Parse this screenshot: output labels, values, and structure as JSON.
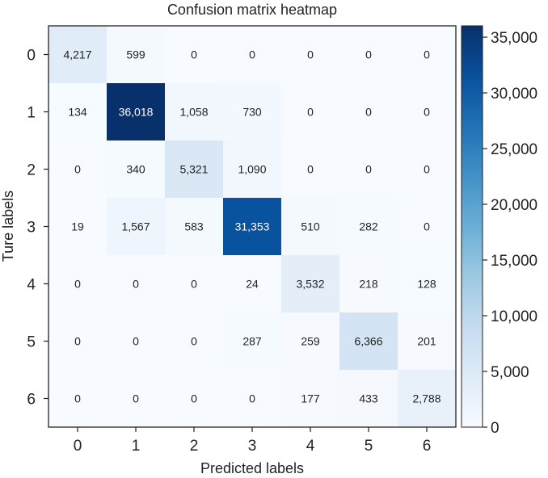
{
  "chart_data": {
    "type": "heatmap",
    "title": "Confusion matrix heatmap",
    "xlabel": "Predicted labels",
    "ylabel": "Ture labels",
    "x_categories": [
      "0",
      "1",
      "2",
      "3",
      "4",
      "5",
      "6"
    ],
    "y_categories": [
      "0",
      "1",
      "2",
      "3",
      "4",
      "5",
      "6"
    ],
    "values": [
      [
        4217,
        599,
        0,
        0,
        0,
        0,
        0
      ],
      [
        134,
        36018,
        1058,
        730,
        0,
        0,
        0
      ],
      [
        0,
        340,
        5321,
        1090,
        0,
        0,
        0
      ],
      [
        19,
        1567,
        583,
        31353,
        510,
        282,
        0
      ],
      [
        0,
        0,
        0,
        24,
        3532,
        218,
        128
      ],
      [
        0,
        0,
        0,
        287,
        259,
        6366,
        201
      ],
      [
        0,
        0,
        0,
        0,
        177,
        433,
        2788
      ]
    ],
    "colormap": "Blues",
    "color_range": [
      0,
      36018
    ],
    "colorbar_ticks": [
      0,
      5000,
      10000,
      15000,
      20000,
      25000,
      30000,
      35000
    ],
    "colorbar_tick_labels": [
      "0",
      "5,000",
      "10,000",
      "15,000",
      "20,000",
      "25,000",
      "30,000",
      "35,000"
    ]
  }
}
